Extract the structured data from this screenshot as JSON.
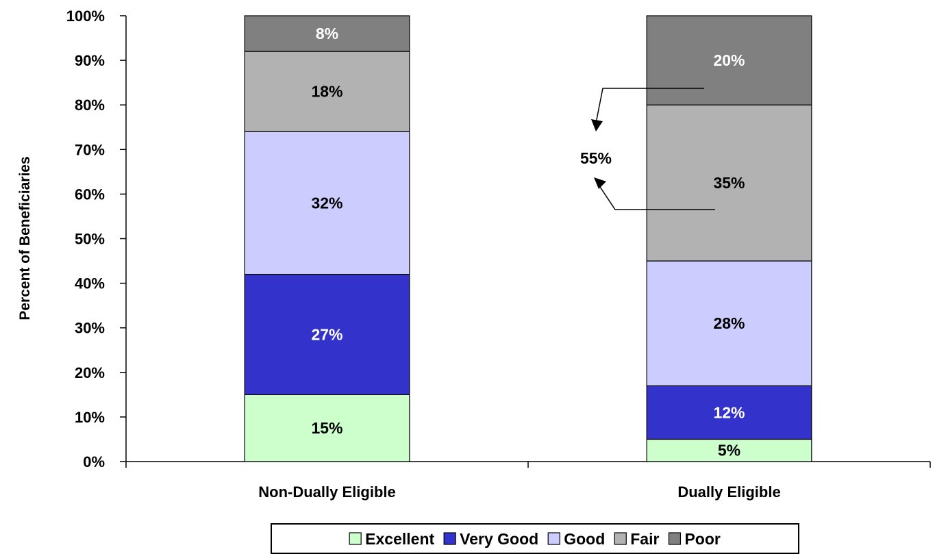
{
  "chart_data": {
    "type": "bar",
    "stacked": true,
    "percent_stacked": true,
    "ylabel": "Percent of Beneficiaries",
    "xlabel": "",
    "ylim": [
      0,
      100
    ],
    "y_ticks": [
      "0%",
      "10%",
      "20%",
      "30%",
      "40%",
      "50%",
      "60%",
      "70%",
      "80%",
      "90%",
      "100%"
    ],
    "categories": [
      "Non-Dually Eligible",
      "Dually Eligible"
    ],
    "series": [
      {
        "name": "Excellent",
        "color": "#ccffcc",
        "values": [
          15,
          5
        ],
        "labels": [
          "15%",
          "5%"
        ],
        "label_color": "#000000"
      },
      {
        "name": "Very Good",
        "color": "#3333cc",
        "values": [
          27,
          12
        ],
        "labels": [
          "27%",
          "12%"
        ],
        "label_color": "#ffffff"
      },
      {
        "name": "Good",
        "color": "#ccccff",
        "values": [
          32,
          28
        ],
        "labels": [
          "32%",
          "28%"
        ],
        "label_color": "#000000"
      },
      {
        "name": "Fair",
        "color": "#b2b2b2",
        "values": [
          18,
          35
        ],
        "labels": [
          "18%",
          "35%"
        ],
        "label_color": "#000000"
      },
      {
        "name": "Poor",
        "color": "#808080",
        "values": [
          8,
          20
        ],
        "labels": [
          "8%",
          "20%"
        ],
        "label_color": "#ffffff"
      }
    ],
    "annotations": [
      {
        "text": "55%",
        "category": "Dually Eligible",
        "series": [
          "Fair",
          "Poor"
        ]
      }
    ],
    "legend": {
      "position": "bottom",
      "items": [
        "Excellent",
        "Very Good",
        "Good",
        "Fair",
        "Poor"
      ]
    },
    "grid": false
  }
}
